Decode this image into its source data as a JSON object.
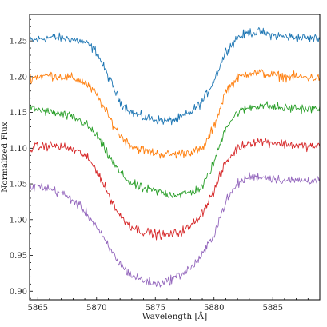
{
  "chart_data": {
    "type": "line",
    "title": "",
    "xlabel": "Wavelength [Å]",
    "ylabel": "Normalized Flux",
    "xlim": [
      5864.3,
      5889.0
    ],
    "ylim": [
      0.888,
      1.287
    ],
    "x_ticks": [
      5865,
      5870,
      5875,
      5880,
      5885
    ],
    "x_tick_labels": [
      "5865",
      "5870",
      "5875",
      "5880",
      "5885"
    ],
    "y_ticks": [
      0.9,
      0.95,
      1.0,
      1.05,
      1.1,
      1.15,
      1.2,
      1.25
    ],
    "y_tick_labels": [
      "0.90",
      "0.95",
      "1.00",
      "1.05",
      "1.10",
      "1.15",
      "1.20",
      "1.25"
    ],
    "grid": false,
    "legend": "none",
    "series": [
      {
        "color": "#1f77b4",
        "x": [
          5864.3,
          5865,
          5866,
          5867,
          5868,
          5869,
          5870,
          5871,
          5872,
          5873,
          5874,
          5875,
          5876,
          5877,
          5878,
          5879,
          5880,
          5881,
          5882,
          5883,
          5884,
          5885,
          5886,
          5887,
          5888,
          5889
        ],
        "y": [
          1.25,
          1.252,
          1.255,
          1.254,
          1.252,
          1.248,
          1.235,
          1.2,
          1.165,
          1.15,
          1.143,
          1.14,
          1.138,
          1.141,
          1.15,
          1.165,
          1.195,
          1.235,
          1.255,
          1.262,
          1.262,
          1.258,
          1.256,
          1.255,
          1.254,
          1.253
        ]
      },
      {
        "color": "#ff7f0e",
        "x": [
          5864.3,
          5865,
          5866,
          5867,
          5868,
          5869,
          5870,
          5871,
          5872,
          5873,
          5874,
          5875,
          5876,
          5877,
          5878,
          5879,
          5880,
          5881,
          5882,
          5883,
          5884,
          5885,
          5886,
          5887,
          5888,
          5889
        ],
        "y": [
          1.198,
          1.2,
          1.202,
          1.2,
          1.198,
          1.192,
          1.175,
          1.145,
          1.118,
          1.103,
          1.097,
          1.093,
          1.091,
          1.092,
          1.095,
          1.098,
          1.13,
          1.18,
          1.198,
          1.206,
          1.205,
          1.202,
          1.2,
          1.2,
          1.199,
          1.198
        ]
      },
      {
        "color": "#2ca02c",
        "x": [
          5864.3,
          5865,
          5866,
          5867,
          5868,
          5869,
          5870,
          5871,
          5872,
          5873,
          5874,
          5875,
          5876,
          5877,
          5878,
          5879,
          5880,
          5881,
          5882,
          5883,
          5884,
          5885,
          5886,
          5887,
          5888,
          5889
        ],
        "y": [
          1.155,
          1.154,
          1.15,
          1.147,
          1.143,
          1.135,
          1.118,
          1.09,
          1.065,
          1.05,
          1.043,
          1.04,
          1.036,
          1.035,
          1.038,
          1.045,
          1.08,
          1.13,
          1.15,
          1.157,
          1.16,
          1.158,
          1.156,
          1.156,
          1.155,
          1.154
        ]
      },
      {
        "color": "#d62728",
        "x": [
          5864.3,
          5865,
          5866,
          5867,
          5868,
          5869,
          5870,
          5871,
          5872,
          5873,
          5874,
          5875,
          5876,
          5877,
          5878,
          5879,
          5880,
          5881,
          5882,
          5883,
          5884,
          5885,
          5886,
          5887,
          5888,
          5889
        ],
        "y": [
          1.1,
          1.102,
          1.104,
          1.102,
          1.098,
          1.09,
          1.07,
          1.035,
          1.005,
          0.99,
          0.983,
          0.98,
          0.978,
          0.982,
          0.99,
          1.01,
          1.04,
          1.08,
          1.1,
          1.108,
          1.11,
          1.108,
          1.106,
          1.104,
          1.103,
          1.102
        ]
      },
      {
        "color": "#9467bd",
        "x": [
          5864.3,
          5865,
          5866,
          5867,
          5868,
          5869,
          5870,
          5871,
          5872,
          5873,
          5874,
          5875,
          5876,
          5877,
          5878,
          5879,
          5880,
          5881,
          5882,
          5883,
          5884,
          5885,
          5886,
          5887,
          5888,
          5889
        ],
        "y": [
          1.045,
          1.047,
          1.043,
          1.037,
          1.027,
          1.012,
          0.99,
          0.962,
          0.938,
          0.922,
          0.915,
          0.91,
          0.914,
          0.922,
          0.932,
          0.95,
          0.98,
          1.025,
          1.05,
          1.06,
          1.06,
          1.058,
          1.055,
          1.055,
          1.055,
          1.055
        ]
      }
    ]
  }
}
